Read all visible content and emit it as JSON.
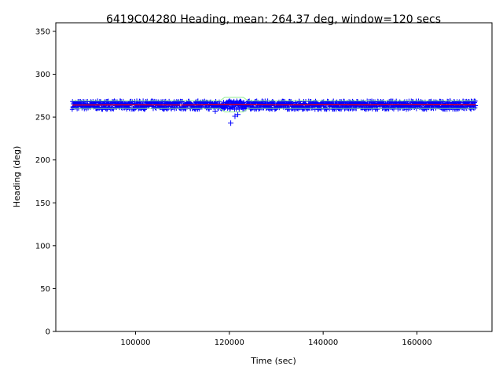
{
  "chart_data": {
    "type": "scatter",
    "title": "6419C04280 Heading, mean: 264.37 deg, window=120 secs",
    "xlabel": "Time (sec)",
    "ylabel": "Heading (deg)",
    "xlim": [
      83000,
      176000
    ],
    "ylim": [
      0,
      360
    ],
    "x_ticks": [
      100000,
      120000,
      140000,
      160000
    ],
    "y_ticks": [
      0,
      50,
      100,
      150,
      200,
      250,
      300,
      350
    ],
    "grid": false,
    "legend": "none",
    "x_range_of_data": [
      86500,
      172500
    ],
    "series": [
      {
        "marker": "+",
        "color": "#0000ff",
        "band_center": 264,
        "band_spread": 5,
        "outliers": [
          {
            "x": 117000,
            "y": 257
          },
          {
            "x": 120300,
            "y": 243
          },
          {
            "x": 121200,
            "y": 251
          },
          {
            "x": 121800,
            "y": 253
          },
          {
            "x": 121400,
            "y": 265
          },
          {
            "x": 122600,
            "y": 266
          }
        ]
      },
      {
        "style": "line",
        "color": "#90ee90",
        "segments": [
          {
            "x": [
              86500,
              100000,
              105000,
              110000,
              115000,
              118000,
              119000,
              123000,
              124000,
              130000,
              140000,
              150000,
              160000,
              165000,
              172500
            ],
            "y": [
              269,
              269,
              269,
              269,
              269,
              269,
              273,
              273,
              269,
              269,
              269,
              269,
              269,
              269,
              269
            ]
          },
          {
            "x": [
              86500,
              100000,
              105000,
              110000,
              115000,
              118000,
              119000,
              123000,
              124000,
              130000,
              140000,
              150000,
              160000,
              165000,
              172500
            ],
            "y": [
              260,
              260,
              260,
              260,
              260,
              260,
              256,
              256,
              260,
              260,
              260,
              260,
              260,
              260,
              260
            ]
          }
        ]
      },
      {
        "style": "line",
        "color": "#ff0000",
        "x": [
          86500,
          100000,
          110000,
          120000,
          130000,
          140000,
          150000,
          160000,
          172500
        ],
        "y": [
          264,
          264.3,
          264.1,
          264.6,
          264.2,
          264.4,
          264.3,
          264.5,
          264.3
        ]
      }
    ]
  }
}
